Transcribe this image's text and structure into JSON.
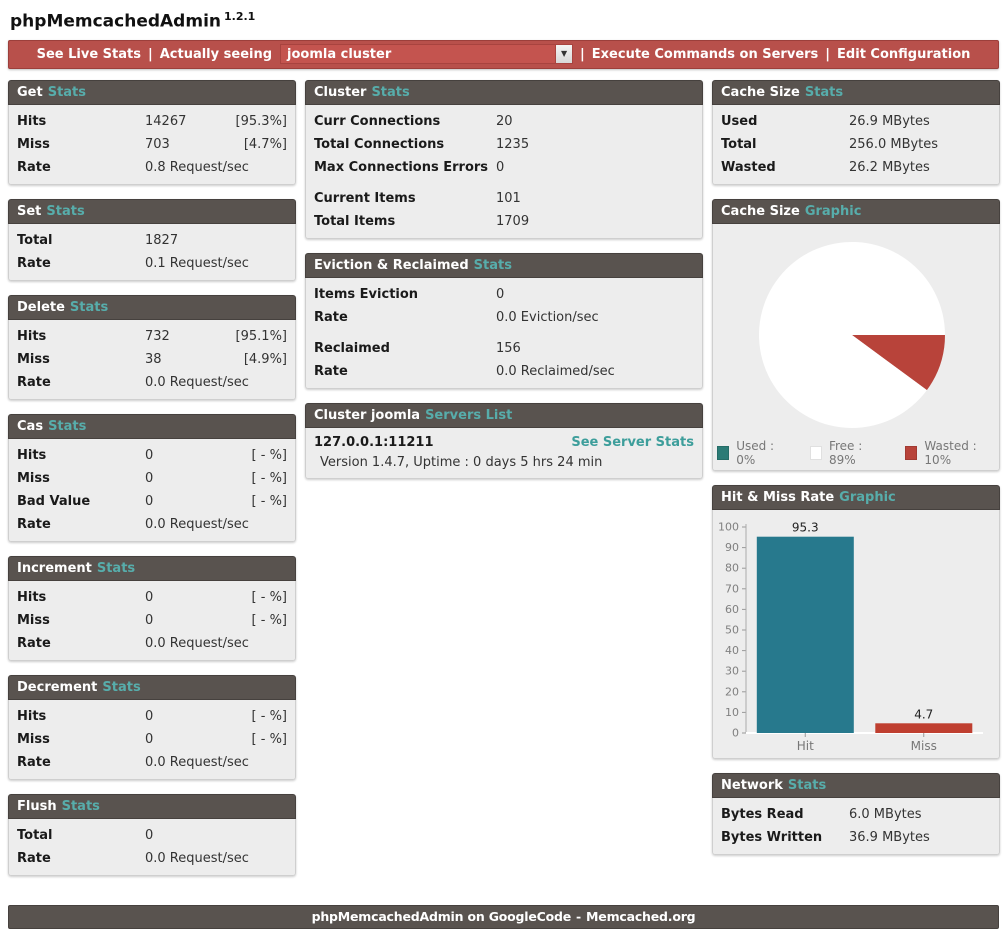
{
  "app": {
    "title": "phpMemcachedAdmin",
    "version": "1.2.1"
  },
  "navbar": {
    "see_live_stats": "See Live Stats",
    "separator": "|",
    "actually_seeing": "Actually seeing",
    "cluster_select_value": "joomla cluster",
    "execute_commands": "Execute Commands on Servers",
    "edit_configuration": "Edit Configuration"
  },
  "left_panels": [
    {
      "title": "Get",
      "subtitle": "Stats",
      "rows": [
        {
          "label": "Hits",
          "value": "14267",
          "pct": "[95.3%]"
        },
        {
          "label": "Miss",
          "value": "703",
          "pct": "[4.7%]"
        },
        {
          "label": "Rate",
          "value": "0.8 Request/sec",
          "pct": ""
        }
      ]
    },
    {
      "title": "Set",
      "subtitle": "Stats",
      "rows": [
        {
          "label": "Total",
          "value": "1827",
          "pct": ""
        },
        {
          "label": "Rate",
          "value": "0.1 Request/sec",
          "pct": ""
        }
      ]
    },
    {
      "title": "Delete",
      "subtitle": "Stats",
      "rows": [
        {
          "label": "Hits",
          "value": "732",
          "pct": "[95.1%]"
        },
        {
          "label": "Miss",
          "value": "38",
          "pct": "[4.9%]"
        },
        {
          "label": "Rate",
          "value": "0.0 Request/sec",
          "pct": ""
        }
      ]
    },
    {
      "title": "Cas",
      "subtitle": "Stats",
      "rows": [
        {
          "label": "Hits",
          "value": "0",
          "pct": "[ - %]"
        },
        {
          "label": "Miss",
          "value": "0",
          "pct": "[ - %]"
        },
        {
          "label": "Bad Value",
          "value": "0",
          "pct": "[ - %]"
        },
        {
          "label": "Rate",
          "value": "0.0 Request/sec",
          "pct": ""
        }
      ]
    },
    {
      "title": "Increment",
      "subtitle": "Stats",
      "rows": [
        {
          "label": "Hits",
          "value": "0",
          "pct": "[ - %]"
        },
        {
          "label": "Miss",
          "value": "0",
          "pct": "[ - %]"
        },
        {
          "label": "Rate",
          "value": "0.0 Request/sec",
          "pct": ""
        }
      ]
    },
    {
      "title": "Decrement",
      "subtitle": "Stats",
      "rows": [
        {
          "label": "Hits",
          "value": "0",
          "pct": "[ - %]"
        },
        {
          "label": "Miss",
          "value": "0",
          "pct": "[ - %]"
        },
        {
          "label": "Rate",
          "value": "0.0 Request/sec",
          "pct": ""
        }
      ]
    },
    {
      "title": "Flush",
      "subtitle": "Stats",
      "rows": [
        {
          "label": "Total",
          "value": "0",
          "pct": ""
        },
        {
          "label": "Rate",
          "value": "0.0 Request/sec",
          "pct": ""
        }
      ]
    }
  ],
  "middle": {
    "cluster": {
      "title": "Cluster",
      "subtitle": "Stats",
      "groups": [
        [
          {
            "label": "Curr Connections",
            "value": "20"
          },
          {
            "label": "Total Connections",
            "value": "1235"
          },
          {
            "label": "Max Connections Errors",
            "value": "0"
          }
        ],
        [
          {
            "label": "Current Items",
            "value": "101"
          },
          {
            "label": "Total Items",
            "value": "1709"
          }
        ]
      ]
    },
    "eviction": {
      "title": "Eviction & Reclaimed",
      "subtitle": "Stats",
      "groups": [
        [
          {
            "label": "Items Eviction",
            "value": "0"
          },
          {
            "label": "Rate",
            "value": "0.0 Eviction/sec"
          }
        ],
        [
          {
            "label": "Reclaimed",
            "value": "156"
          },
          {
            "label": "Rate",
            "value": "0.0 Reclaimed/sec"
          }
        ]
      ]
    },
    "servers": {
      "title": "Cluster joomla",
      "subtitle": "Servers List",
      "server_address": "127.0.0.1:11211",
      "server_link": "See Server Stats",
      "server_detail": "Version 1.4.7, Uptime : 0 days 5 hrs 24 min"
    }
  },
  "right": {
    "cache_size": {
      "title": "Cache Size",
      "subtitle": "Stats",
      "rows": [
        {
          "label": "Used",
          "value": "26.9 MBytes"
        },
        {
          "label": "Total",
          "value": "256.0 MBytes"
        },
        {
          "label": "Wasted",
          "value": "26.2 MBytes"
        }
      ]
    },
    "cache_graphic": {
      "title": "Cache Size",
      "subtitle": "Graphic"
    },
    "hitmiss_graphic": {
      "title": "Hit & Miss Rate",
      "subtitle": "Graphic"
    },
    "network": {
      "title": "Network",
      "subtitle": "Stats",
      "rows": [
        {
          "label": "Bytes Read",
          "value": "6.0 MBytes"
        },
        {
          "label": "Bytes Written",
          "value": "36.9 MBytes"
        }
      ]
    }
  },
  "chart_data": [
    {
      "type": "pie",
      "title": "Cache Size Graphic",
      "labels": [
        "Used",
        "Free",
        "Wasted"
      ],
      "values": [
        0,
        89,
        10
      ],
      "unit": "%",
      "colors": [
        "#2b7b76",
        "#ffffff",
        "#b8433a"
      ],
      "legend": [
        "Used : 0%",
        "Free : 89%",
        "Wasted : 10%"
      ],
      "legend_position": "bottom"
    },
    {
      "type": "bar",
      "title": "Hit & Miss Rate Graphic",
      "categories": [
        "Hit",
        "Miss"
      ],
      "values": [
        95.3,
        4.7
      ],
      "value_labels": [
        "95.3",
        "4.7"
      ],
      "colors": [
        "#27798d",
        "#bf3f30"
      ],
      "ylim": [
        0,
        100
      ],
      "ytick_step": 10,
      "grid": false,
      "legend_position": "none"
    }
  ],
  "footer": {
    "left_link": "phpMemcachedAdmin on GoogleCode",
    "separator": "-",
    "right_link": "Memcached.org"
  }
}
